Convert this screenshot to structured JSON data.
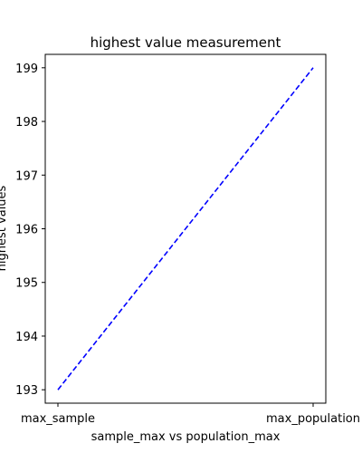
{
  "chart_data": {
    "type": "line",
    "title": "highest value measurement",
    "xlabel": "sample_max vs population_max",
    "ylabel": "highest values",
    "categories": [
      "max_sample",
      "max_population"
    ],
    "series": [
      {
        "values": [
          193,
          199
        ],
        "color": "#0000ff",
        "line_style": "dashed"
      }
    ],
    "yticks": [
      "193",
      "194",
      "195",
      "196",
      "197",
      "198",
      "199"
    ],
    "ylim": [
      192.75,
      199.25
    ],
    "grid": false
  }
}
